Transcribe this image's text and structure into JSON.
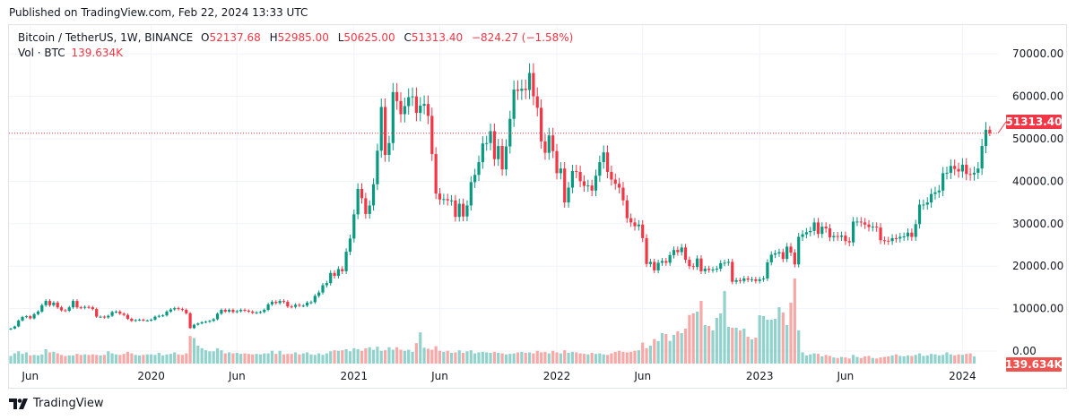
{
  "header": {
    "published": "Published on TradingView.com, Feb 22, 2024 13:33 UTC"
  },
  "legend": {
    "symbol": "Bitcoin / TetherUS, 1W, BINANCE",
    "o_label": "O",
    "o": "52137.68",
    "h_label": "H",
    "h": "52985.00",
    "l_label": "L",
    "l": "50625.00",
    "c_label": "C",
    "c": "51313.40",
    "change": "−824.27 (−1.58%)",
    "vol_label": "Vol · BTC",
    "vol": "139.634K"
  },
  "footer": {
    "brand": "TradingView"
  },
  "colors": {
    "up": "#089981",
    "down": "#f23645",
    "vol_up": "#92d2cc",
    "vol_down": "#f7a9a7",
    "grid": "#f0f3fa"
  },
  "chart_data": {
    "type": "candlestick",
    "interval": "1W",
    "ylim": [
      0,
      72000
    ],
    "y_ticks": [
      "70000.00",
      "60000.00",
      "50000.00",
      "40000.00",
      "30000.00",
      "20000.00",
      "10000.00",
      "0.00"
    ],
    "y_tick_values": [
      70000,
      60000,
      50000,
      40000,
      30000,
      20000,
      10000,
      0
    ],
    "x_ticks": [
      {
        "label": "Jun",
        "index": 5
      },
      {
        "label": "2020",
        "index": 36
      },
      {
        "label": "Jun",
        "index": 58
      },
      {
        "label": "2021",
        "index": 88
      },
      {
        "label": "Jun",
        "index": 110
      },
      {
        "label": "2022",
        "index": 140
      },
      {
        "label": "Jun",
        "index": 162
      },
      {
        "label": "2023",
        "index": 192
      },
      {
        "label": "Jun",
        "index": 214
      },
      {
        "label": "2024",
        "index": 244
      }
    ],
    "first_open": 5100,
    "last_candle": {
      "open": 52137.68,
      "high": 52985.0,
      "low": 50625.0,
      "close": 51313.4
    },
    "last_price_label": "51313.40",
    "last_volume_label": "139.634K",
    "closes": [
      5300,
      5800,
      7200,
      8000,
      8200,
      7700,
      8700,
      9300,
      10800,
      11800,
      10800,
      11400,
      10300,
      9600,
      9500,
      10300,
      11800,
      10300,
      10200,
      10400,
      10300,
      9900,
      8100,
      8100,
      7900,
      8300,
      9200,
      9300,
      8800,
      8500,
      7600,
      7100,
      7300,
      7400,
      7200,
      7200,
      7400,
      8100,
      8300,
      8400,
      9300,
      9800,
      10100,
      9900,
      9700,
      8900,
      5400,
      6200,
      6500,
      6800,
      6900,
      7100,
      7500,
      8800,
      9700,
      9300,
      9700,
      9200,
      9400,
      9700,
      9500,
      9300,
      9000,
      9100,
      9200,
      9700,
      11000,
      11600,
      11300,
      11800,
      11600,
      10500,
      10400,
      10900,
      10700,
      10700,
      11400,
      11500,
      13000,
      13800,
      15500,
      16000,
      18400,
      17700,
      19300,
      18800,
      23400,
      26500,
      32200,
      38200,
      36000,
      32300,
      34300,
      39300,
      47200,
      57500,
      46200,
      49000,
      61000,
      58900,
      55800,
      57700,
      59800,
      60000,
      56100,
      57800,
      58200,
      55400,
      46400,
      37100,
      35700,
      35800,
      35500,
      35500,
      31600,
      34700,
      31700,
      34300,
      39800,
      41500,
      44500,
      48900,
      49000,
      51800,
      45200,
      48300,
      42800,
      48200,
      54700,
      61600,
      61300,
      61800,
      61500,
      65500,
      60000,
      57300,
      49400,
      46700,
      50800,
      47100,
      41900,
      43000,
      35000,
      38500,
      42400,
      42200,
      40000,
      38900,
      39000,
      37800,
      41300,
      44500,
      46800,
      42200,
      40400,
      39400,
      38500,
      35500,
      31300,
      30300,
      29400,
      29800,
      26600,
      20500,
      21000,
      19000,
      20800,
      21200,
      20800,
      22600,
      23800,
      23300,
      24400,
      21500,
      20000,
      19800,
      21800,
      18800,
      19400,
      19100,
      19200,
      19400,
      20700,
      20800,
      21000,
      16300,
      16700,
      16500,
      17100,
      16800,
      16900,
      16500,
      16900,
      17100,
      20900,
      22700,
      23000,
      23300,
      21700,
      24600,
      23200,
      20400,
      26900,
      27500,
      28000,
      28300,
      30300,
      27600,
      29300,
      28900,
      26800,
      27100,
      26900,
      27200,
      25900,
      25600,
      30500,
      30500,
      30300,
      29800,
      29200,
      29300,
      29100,
      26100,
      26000,
      25900,
      26600,
      26500,
      26900,
      27000,
      27900,
      26900,
      29900,
      34500,
      34500,
      35000,
      37000,
      37400,
      37800,
      41900,
      42000,
      43600,
      42900,
      42300,
      43900,
      41700,
      41600,
      42000,
      43000,
      48300,
      52137.68,
      51313.4
    ],
    "volumes": [
      150000,
      200000,
      240000,
      190000,
      220000,
      160000,
      170000,
      160000,
      180000,
      280000,
      220000,
      230000,
      200000,
      170000,
      150000,
      160000,
      160000,
      190000,
      170000,
      180000,
      170000,
      180000,
      170000,
      160000,
      170000,
      240000,
      200000,
      180000,
      170000,
      190000,
      230000,
      200000,
      170000,
      160000,
      170000,
      180000,
      180000,
      170000,
      210000,
      160000,
      180000,
      190000,
      220000,
      180000,
      170000,
      200000,
      540000,
      500000,
      350000,
      300000,
      260000,
      240000,
      240000,
      300000,
      260000,
      200000,
      220000,
      200000,
      210000,
      190000,
      200000,
      190000,
      180000,
      190000,
      180000,
      200000,
      200000,
      250000,
      190000,
      250000,
      180000,
      190000,
      190000,
      220000,
      180000,
      200000,
      220000,
      180000,
      170000,
      200000,
      170000,
      200000,
      240000,
      260000,
      250000,
      260000,
      280000,
      240000,
      300000,
      280000,
      250000,
      300000,
      320000,
      270000,
      330000,
      250000,
      260000,
      320000,
      270000,
      320000,
      270000,
      250000,
      270000,
      230000,
      400000,
      610000,
      310000,
      290000,
      270000,
      340000,
      250000,
      230000,
      250000,
      210000,
      220000,
      260000,
      210000,
      240000,
      260000,
      200000,
      220000,
      230000,
      220000,
      210000,
      230000,
      210000,
      200000,
      180000,
      190000,
      200000,
      220000,
      230000,
      210000,
      220000,
      200000,
      250000,
      220000,
      230000,
      200000,
      250000,
      220000,
      200000,
      260000,
      210000,
      230000,
      220000,
      200000,
      190000,
      180000,
      210000,
      190000,
      200000,
      180000,
      170000,
      200000,
      230000,
      250000,
      230000,
      220000,
      230000,
      250000,
      260000,
      410000,
      300000,
      350000,
      480000,
      440000,
      595000,
      578000,
      443000,
      560000,
      630000,
      595000,
      683000,
      950000,
      980000,
      1015000,
      1225000,
      753000,
      735000,
      648000,
      893000,
      980000,
      1418000,
      718000,
      700000,
      700000,
      648000,
      683000,
      525000,
      473000,
      508000,
      945000,
      928000,
      858000,
      858000,
      875000,
      1103000,
      998000,
      753000,
      1190000,
      1663000,
      648000,
      220000,
      160000,
      180000,
      200000,
      190000,
      140000,
      170000,
      150000,
      120000,
      110000,
      130000,
      120000,
      100000,
      170000,
      130000,
      110000,
      140000,
      150000,
      110000,
      100000,
      120000,
      130000,
      140000,
      160000,
      180000,
      150000,
      140000,
      160000,
      150000,
      170000,
      200000,
      150000,
      160000,
      190000,
      180000,
      160000,
      170000,
      220000,
      180000,
      160000,
      180000,
      170000,
      190000,
      200000,
      139634
    ]
  }
}
